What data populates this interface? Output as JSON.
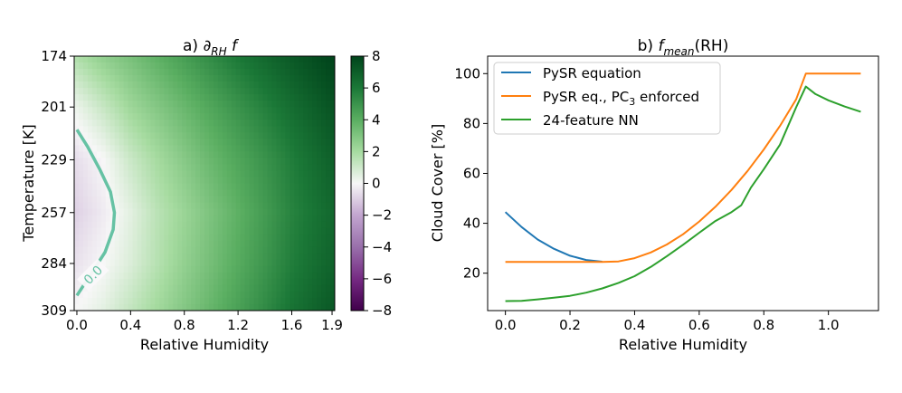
{
  "chart_data": [
    {
      "type": "heatmap",
      "title_prefix": "a) ∂",
      "title_sub": "RH",
      "title_suffix": " f",
      "xlabel": "Relative Humidity",
      "ylabel": "Temperature [K]",
      "xlim": [
        -0.02,
        1.92
      ],
      "x_ticks": [
        0.0,
        0.4,
        0.8,
        1.2,
        1.6,
        1.9
      ],
      "x_tick_labels": [
        "0.0",
        "0.4",
        "0.8",
        "1.2",
        "1.6",
        "1.9"
      ],
      "ylim": [
        174,
        309
      ],
      "y_inverted": true,
      "y_ticks": [
        174,
        201,
        229,
        257,
        284,
        309
      ],
      "y_tick_labels": [
        "174",
        "201",
        "229",
        "257",
        "284",
        "309"
      ],
      "colormap": "PRGn",
      "colorbar": {
        "range": [
          -8,
          8
        ],
        "ticks": [
          8,
          6,
          4,
          2,
          0,
          -2,
          -4,
          -6,
          -8
        ],
        "tick_labels": [
          "8",
          "6",
          "4",
          "2",
          "0",
          "−2",
          "−4",
          "−6",
          "−8"
        ]
      },
      "contour": {
        "level_label": "0.0",
        "color": "#66c2a4",
        "points": [
          [
            0.0,
            213
          ],
          [
            0.08,
            222
          ],
          [
            0.17,
            234
          ],
          [
            0.25,
            246
          ],
          [
            0.28,
            257
          ],
          [
            0.27,
            266
          ],
          [
            0.21,
            278
          ],
          [
            0.12,
            288
          ],
          [
            0.0,
            301
          ]
        ]
      },
      "field_samples": {
        "rh": [
          0.0,
          0.2,
          0.4,
          0.6,
          0.8,
          1.0,
          1.2,
          1.4,
          1.6,
          1.9
        ],
        "t": [
          174,
          201,
          229,
          257,
          284,
          309
        ],
        "values": [
          [
            1.8,
            2.6,
            3.2,
            3.9,
            4.6,
            5.3,
            6.0,
            6.6,
            7.2,
            8.0
          ],
          [
            0.3,
            1.2,
            2.2,
            2.9,
            3.6,
            4.3,
            5.0,
            5.7,
            6.4,
            7.4
          ],
          [
            -0.6,
            0.0,
            1.1,
            2.0,
            2.8,
            3.6,
            4.3,
            5.0,
            5.8,
            6.9
          ],
          [
            -0.9,
            -0.3,
            0.5,
            1.5,
            2.3,
            3.1,
            3.9,
            4.7,
            5.6,
            6.6
          ],
          [
            -0.5,
            0.0,
            0.7,
            1.6,
            2.5,
            3.3,
            4.1,
            4.9,
            5.8,
            6.8
          ],
          [
            0.0,
            0.5,
            1.3,
            2.1,
            2.9,
            3.7,
            4.5,
            5.3,
            6.2,
            7.2
          ]
        ]
      }
    },
    {
      "type": "line",
      "title_prefix": "b) ",
      "title_f": "f",
      "title_sub": "mean",
      "title_suffix": "(RH)",
      "xlabel": "Relative Humidity",
      "ylabel": "Cloud Cover [%]",
      "xlim": [
        -0.055,
        1.155
      ],
      "ylim": [
        5,
        107
      ],
      "x_ticks": [
        0.0,
        0.2,
        0.4,
        0.6,
        0.8,
        1.0
      ],
      "x_tick_labels": [
        "0.0",
        "0.2",
        "0.4",
        "0.6",
        "0.8",
        "1.0"
      ],
      "y_ticks": [
        20,
        40,
        60,
        80,
        100
      ],
      "y_tick_labels": [
        "20",
        "40",
        "60",
        "80",
        "100"
      ],
      "legend_position": "upper-left",
      "series": [
        {
          "name": "PySR equation",
          "color": "#1f77b4",
          "x": [
            0.0,
            0.05,
            0.1,
            0.15,
            0.2,
            0.25,
            0.3
          ],
          "y": [
            44.5,
            38.5,
            33.5,
            29.8,
            27.0,
            25.3,
            24.6
          ]
        },
        {
          "name_main": "PySR eq., PC",
          "name_sub": "3",
          "name_tail": " enforced",
          "color": "#ff7f0e",
          "x": [
            0.0,
            0.1,
            0.2,
            0.3,
            0.35,
            0.4,
            0.45,
            0.5,
            0.55,
            0.6,
            0.65,
            0.7,
            0.75,
            0.8,
            0.85,
            0.9,
            0.93,
            1.0,
            1.1
          ],
          "y": [
            24.5,
            24.5,
            24.5,
            24.5,
            24.7,
            26.0,
            28.3,
            31.5,
            35.6,
            40.7,
            46.6,
            53.4,
            61.0,
            69.6,
            79.0,
            89.7,
            100,
            100,
            100
          ]
        },
        {
          "name": "24-feature NN",
          "color": "#2ca02c",
          "x": [
            0.0,
            0.05,
            0.1,
            0.15,
            0.2,
            0.25,
            0.3,
            0.35,
            0.4,
            0.45,
            0.5,
            0.55,
            0.6,
            0.65,
            0.7,
            0.73,
            0.76,
            0.8,
            0.85,
            0.9,
            0.93,
            0.96,
            1.0,
            1.05,
            1.1
          ],
          "y": [
            8.8,
            8.9,
            9.5,
            10.2,
            10.9,
            12.2,
            13.9,
            16.1,
            18.8,
            22.5,
            26.8,
            31.4,
            36.2,
            40.9,
            44.5,
            47.2,
            54.3,
            61.7,
            71.5,
            86.5,
            94.8,
            91.8,
            89.3,
            86.8,
            84.7
          ]
        }
      ]
    }
  ]
}
